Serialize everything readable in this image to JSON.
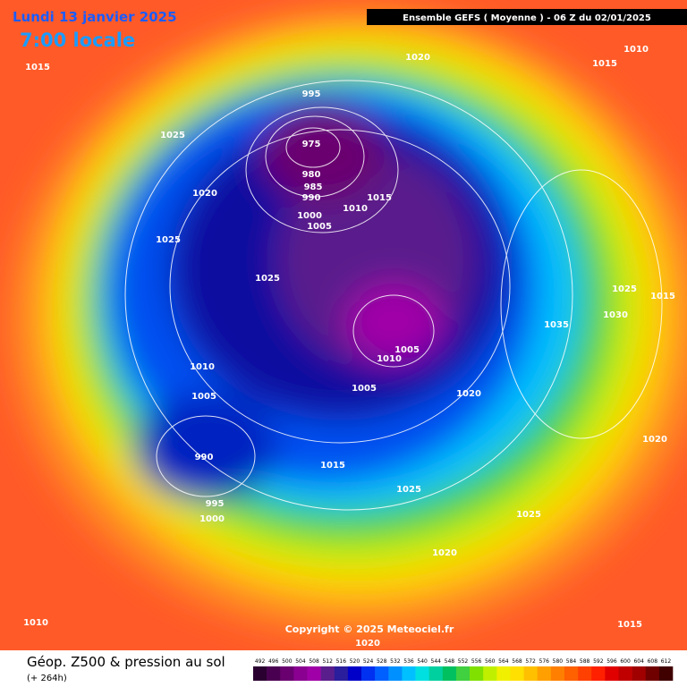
{
  "header": {
    "date": "Lundi 13 janvier 2025",
    "time": "7:00 locale",
    "model": "Ensemble GEFS  ( Moyenne )  -  06 Z du 02/01/2025"
  },
  "copyright": "Copyright © 2025 Meteociel.fr",
  "footer": {
    "title": "Géop. Z500 & pression au sol",
    "lead": "(+ 264h)"
  },
  "isobar_labels": [
    "1015",
    "1020",
    "1015",
    "1010",
    "995",
    "1025",
    "975",
    "980",
    "985",
    "990",
    "1000",
    "1005",
    "1010",
    "1015",
    "1020",
    "1025",
    "1025",
    "1025",
    "1015",
    "1030",
    "1035",
    "1005",
    "1010",
    "1010",
    "1005",
    "1020",
    "1005",
    "1020",
    "990",
    "1015",
    "1025",
    "995",
    "1000",
    "1025",
    "1020",
    "1010",
    "1015",
    "1020"
  ],
  "colorbar": {
    "ticks": [
      492,
      496,
      500,
      504,
      508,
      512,
      516,
      520,
      524,
      528,
      532,
      536,
      540,
      544,
      548,
      552,
      556,
      560,
      564,
      568,
      572,
      576,
      580,
      584,
      588,
      592,
      596,
      600,
      604,
      608,
      612
    ],
    "colors": [
      "#2a0030",
      "#4a0050",
      "#6a0070",
      "#8a0090",
      "#a000a8",
      "#5a1e8c",
      "#2a1e9c",
      "#0000c8",
      "#0030f0",
      "#0060ff",
      "#0090ff",
      "#00c0ff",
      "#00e0e0",
      "#00d0a0",
      "#00c060",
      "#40d040",
      "#80e000",
      "#c0f000",
      "#f0f000",
      "#ffe000",
      "#ffc000",
      "#ffa000",
      "#ff8000",
      "#ff6000",
      "#ff4000",
      "#ff2000",
      "#e00000",
      "#c00000",
      "#a00000",
      "#700000",
      "#400000"
    ]
  }
}
